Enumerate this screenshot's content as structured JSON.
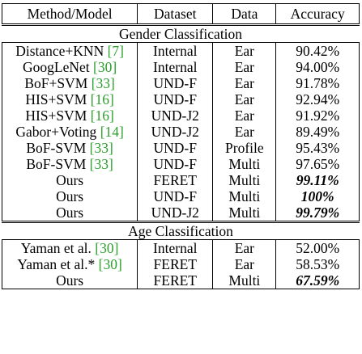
{
  "headers": [
    "Method/Model",
    "Dataset",
    "Data",
    "Accuracy"
  ],
  "sections": [
    {
      "title": "Gender Classification",
      "rows": [
        {
          "method": "Distance+KNN ",
          "ref": "[7]",
          "dataset": "Internal",
          "data": "Ear",
          "accuracy": "90.42%",
          "bold": false
        },
        {
          "method": "GoogLeNet ",
          "ref": "[30]",
          "dataset": "Internal",
          "data": "Ear",
          "accuracy": "94.00%",
          "bold": false
        },
        {
          "method": "BoF+SVM ",
          "ref": "[33]",
          "dataset": "UND-F",
          "data": "Ear",
          "accuracy": "91.78%",
          "bold": false
        },
        {
          "method": "HIS+SVM ",
          "ref": "[16]",
          "dataset": "UND-F",
          "data": "Ear",
          "accuracy": "92.94%",
          "bold": false
        },
        {
          "method": "HIS+SVM ",
          "ref": "[16]",
          "dataset": "UND-J2",
          "data": "Ear",
          "accuracy": "91.92%",
          "bold": false
        },
        {
          "method": "Gabor+Voting ",
          "ref": "[14]",
          "dataset": "UND-J2",
          "data": "Ear",
          "accuracy": "89.49%",
          "bold": false
        },
        {
          "method": "BoF-SVM ",
          "ref": "[33]",
          "dataset": "UND-F",
          "data": "Profile",
          "accuracy": "95.43%",
          "bold": false
        },
        {
          "method": "BoF-SVM ",
          "ref": "[33]",
          "dataset": "UND-F",
          "data": "Multi",
          "accuracy": "97.65%",
          "bold": false
        },
        {
          "method": "Ours",
          "ref": "",
          "dataset": "FERET",
          "data": "Multi",
          "accuracy": "99.11%",
          "bold": true
        },
        {
          "method": "Ours",
          "ref": "",
          "dataset": "UND-F",
          "data": "Multi",
          "accuracy": "100%",
          "bold": true
        },
        {
          "method": "Ours",
          "ref": "",
          "dataset": "UND-J2",
          "data": "Multi",
          "accuracy": "99.79%",
          "bold": true
        }
      ]
    },
    {
      "title": "Age Classification",
      "rows": [
        {
          "method": "Yaman et al. ",
          "ref": "[30]",
          "dataset": "Internal",
          "data": "Ear",
          "accuracy": "52.00%",
          "bold": false
        },
        {
          "method": "Yaman et al.* ",
          "ref": "[30]",
          "dataset": "FERET",
          "data": "Ear",
          "accuracy": "58.53%",
          "bold": false
        },
        {
          "method": "Ours",
          "ref": "",
          "dataset": "FERET",
          "data": "Multi",
          "accuracy": "67.59%",
          "bold": true
        }
      ]
    }
  ]
}
